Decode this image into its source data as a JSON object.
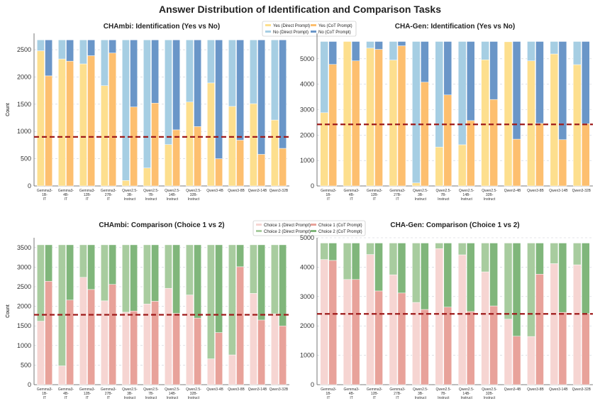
{
  "figure": {
    "title": "Answer Distribution of Identification and Comparison Tasks"
  },
  "models": [
    "Gemma3-1B-IT",
    "Gemma3-4B-IT",
    "Gemma3-12B-IT",
    "Gemma3-27B-IT",
    "Qwen2.5-3B-Instruct",
    "Qwen2.5-7B-Instruct",
    "Qwen2.5-14B-Instruct",
    "Qwen2.5-32B-Instruct",
    "Qwen3-4B",
    "Qwen3-8B",
    "Qwen3-14B",
    "Qwen3-32B"
  ],
  "model_tick_lines": [
    [
      "Gemma3-",
      "1B-",
      "IT"
    ],
    [
      "Gemma3-",
      "4B-",
      "IT"
    ],
    [
      "Gemma3-",
      "12B-",
      "IT"
    ],
    [
      "Gemma3-",
      "27B-",
      "IT"
    ],
    [
      "Qwen2.5-",
      "3B-",
      "Instruct"
    ],
    [
      "Qwen2.5-",
      "7B-",
      "Instruct"
    ],
    [
      "Qwen2.5-",
      "14B-",
      "Instruct"
    ],
    [
      "Qwen2.5-",
      "32B-",
      "Instruct"
    ],
    [
      "Qwen3-4B"
    ],
    [
      "Qwen3-8B"
    ],
    [
      "Qwen3-14B"
    ],
    [
      "Qwen3-32B"
    ]
  ],
  "chart_data": [
    {
      "type": "bar",
      "title": "CHAmbi: Identification (Yes vs No)",
      "ylabel": "Count",
      "ylim": [
        0,
        2800
      ],
      "yticks": [
        0,
        500,
        1000,
        1500,
        2000,
        2500
      ],
      "total": 2680,
      "reference_line": 900,
      "legend_position": "top",
      "series": [
        {
          "name": "Yes (Direct Prompt)",
          "color": "#fddf8e",
          "values": [
            2480,
            2330,
            2240,
            1840,
            100,
            330,
            760,
            1540,
            1890,
            1460,
            1510,
            1210
          ]
        },
        {
          "name": "No (Direct Prompt)",
          "color": "#a6cee3",
          "values": [
            200,
            350,
            440,
            840,
            2580,
            2350,
            1920,
            1140,
            790,
            1220,
            1170,
            1470
          ]
        },
        {
          "name": "Yes (CoT Prompt)",
          "color": "#fdbf6f",
          "values": [
            2020,
            2290,
            2390,
            2440,
            1450,
            1520,
            1030,
            1090,
            500,
            840,
            580,
            690
          ]
        },
        {
          "name": "No (CoT Prompt)",
          "color": "#6a96c8",
          "values": [
            660,
            390,
            290,
            240,
            1230,
            1160,
            1650,
            1590,
            2180,
            1840,
            2100,
            1990
          ]
        }
      ]
    },
    {
      "type": "bar",
      "title": "CHA-Gen: Identification (Yes vs No)",
      "ylabel": "Count",
      "ylim": [
        0,
        6000
      ],
      "yticks": [
        0,
        1000,
        2000,
        3000,
        4000,
        5000
      ],
      "total": 5680,
      "reference_line": 2420,
      "series": [
        {
          "name": "Yes (Direct Prompt)",
          "color": "#fddf8e",
          "values": [
            2880,
            5680,
            5420,
            4950,
            120,
            1530,
            1620,
            4960,
            5670,
            4920,
            5190,
            4770
          ]
        },
        {
          "name": "No (Direct Prompt)",
          "color": "#a6cee3",
          "values": [
            2800,
            0,
            260,
            730,
            5560,
            4150,
            4060,
            720,
            10,
            760,
            490,
            910
          ]
        },
        {
          "name": "Yes (CoT Prompt)",
          "color": "#fdbf6f",
          "values": [
            4780,
            4920,
            5370,
            5510,
            4080,
            3580,
            2570,
            3400,
            1840,
            2460,
            1820,
            2450
          ]
        },
        {
          "name": "No (CoT Prompt)",
          "color": "#6a96c8",
          "values": [
            900,
            760,
            310,
            170,
            1600,
            2100,
            3110,
            2280,
            3840,
            3220,
            3860,
            3230
          ]
        }
      ]
    },
    {
      "type": "bar",
      "title": "CHAmbi: Comparison (Choice 1 vs 2)",
      "ylabel": "Count",
      "ylim": [
        0,
        3750
      ],
      "yticks": [
        0,
        500,
        1000,
        1500,
        2000,
        2500,
        3000,
        3500
      ],
      "total": 3570,
      "reference_line": 1785,
      "legend_position": "top",
      "series": [
        {
          "name": "Choice 1 (Direct Prompt)",
          "color": "#f6d5d2",
          "values": [
            1620,
            480,
            2740,
            2140,
            1850,
            2060,
            2460,
            2290,
            660,
            760,
            2330,
            1810
          ]
        },
        {
          "name": "Choice 2 (Direct Prompt)",
          "color": "#a8cc9f",
          "values": [
            1950,
            3090,
            830,
            1430,
            1720,
            1510,
            1110,
            1280,
            2910,
            2810,
            1240,
            1760
          ]
        },
        {
          "name": "Choice 1 (CoT Prompt)",
          "color": "#e8a29a",
          "values": [
            2640,
            2160,
            2430,
            2560,
            1880,
            2130,
            1820,
            1700,
            1330,
            3010,
            1650,
            1500
          ]
        },
        {
          "name": "Choice 2 (CoT Prompt)",
          "color": "#80b67b",
          "values": [
            930,
            1410,
            1140,
            1010,
            1690,
            1440,
            1750,
            1870,
            2240,
            560,
            1920,
            2070
          ]
        }
      ]
    },
    {
      "type": "bar",
      "title": "CHA-Gen: Comparison (Choice 1 vs 2)",
      "ylabel": "Count",
      "ylim": [
        0,
        5000
      ],
      "yticks": [
        0,
        1000,
        2000,
        3000,
        4000,
        5000
      ],
      "total": 4820,
      "reference_line": 2410,
      "series": [
        {
          "name": "Choice 1 (Direct Prompt)",
          "color": "#f6d5d2",
          "values": [
            4260,
            3580,
            4430,
            3740,
            2800,
            4630,
            4420,
            3840,
            2230,
            1640,
            4120,
            4080
          ]
        },
        {
          "name": "Choice 2 (Direct Prompt)",
          "color": "#a8cc9f",
          "values": [
            560,
            1240,
            390,
            1080,
            2020,
            190,
            400,
            980,
            2590,
            3180,
            700,
            740
          ]
        },
        {
          "name": "Choice 1 (CoT Prompt)",
          "color": "#e8a29a",
          "values": [
            4230,
            3580,
            3190,
            3120,
            2560,
            2640,
            2490,
            2680,
            1650,
            3760,
            2460,
            2420
          ]
        },
        {
          "name": "Choice 2 (CoT Prompt)",
          "color": "#80b67b",
          "values": [
            590,
            1240,
            1630,
            1700,
            2260,
            2180,
            2330,
            2140,
            3170,
            1060,
            2360,
            2400
          ]
        }
      ]
    }
  ]
}
